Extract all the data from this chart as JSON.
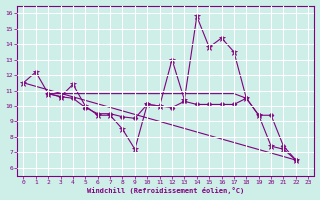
{
  "xlabel": "Windchill (Refroidissement éolien,°C)",
  "xlim": [
    -0.5,
    23.5
  ],
  "ylim": [
    5.5,
    16.5
  ],
  "yticks": [
    6,
    7,
    8,
    9,
    10,
    11,
    12,
    13,
    14,
    15,
    16
  ],
  "xticks": [
    0,
    1,
    2,
    3,
    4,
    5,
    6,
    7,
    8,
    9,
    10,
    11,
    12,
    13,
    14,
    15,
    16,
    17,
    18,
    19,
    20,
    21,
    22,
    23
  ],
  "background_color": "#ceeee8",
  "line_color": "#800080",
  "grid_color": "#b8e0da",
  "lines": [
    {
      "x": [
        0,
        1,
        2,
        3,
        4,
        5,
        6,
        7,
        8,
        9,
        10,
        11,
        12,
        13,
        14,
        15,
        16,
        17,
        18,
        19,
        20,
        21,
        22
      ],
      "y": [
        11.5,
        12.2,
        10.8,
        10.6,
        11.4,
        10.0,
        9.4,
        9.4,
        8.5,
        7.2,
        10.1,
        10.0,
        13.0,
        10.4,
        15.8,
        13.8,
        14.4,
        13.5,
        10.5,
        9.4,
        7.4,
        7.2,
        6.5
      ],
      "marker": "*",
      "ms": 4.5
    },
    {
      "x": [
        2,
        3,
        4,
        5,
        6,
        7,
        8,
        9,
        10,
        11,
        12,
        13,
        14,
        15,
        16,
        17,
        18
      ],
      "y": [
        10.8,
        10.8,
        10.8,
        10.8,
        10.8,
        10.8,
        10.8,
        10.8,
        10.8,
        10.8,
        10.8,
        10.8,
        10.8,
        10.8,
        10.8,
        10.8,
        10.5
      ],
      "marker": null,
      "ms": 0
    },
    {
      "x": [
        0,
        22
      ],
      "y": [
        11.5,
        6.5
      ],
      "marker": null,
      "ms": 0
    },
    {
      "x": [
        2,
        3,
        4,
        5,
        6,
        7,
        8,
        9,
        10,
        11,
        12,
        13,
        14,
        15,
        16,
        17,
        18,
        19,
        20,
        21,
        22
      ],
      "y": [
        10.8,
        10.6,
        10.5,
        9.9,
        9.5,
        9.5,
        9.3,
        9.2,
        10.1,
        10.0,
        9.9,
        10.3,
        10.1,
        10.1,
        10.1,
        10.1,
        10.5,
        9.4,
        9.4,
        7.4,
        6.5
      ],
      "marker": "D",
      "ms": 2.5
    }
  ]
}
